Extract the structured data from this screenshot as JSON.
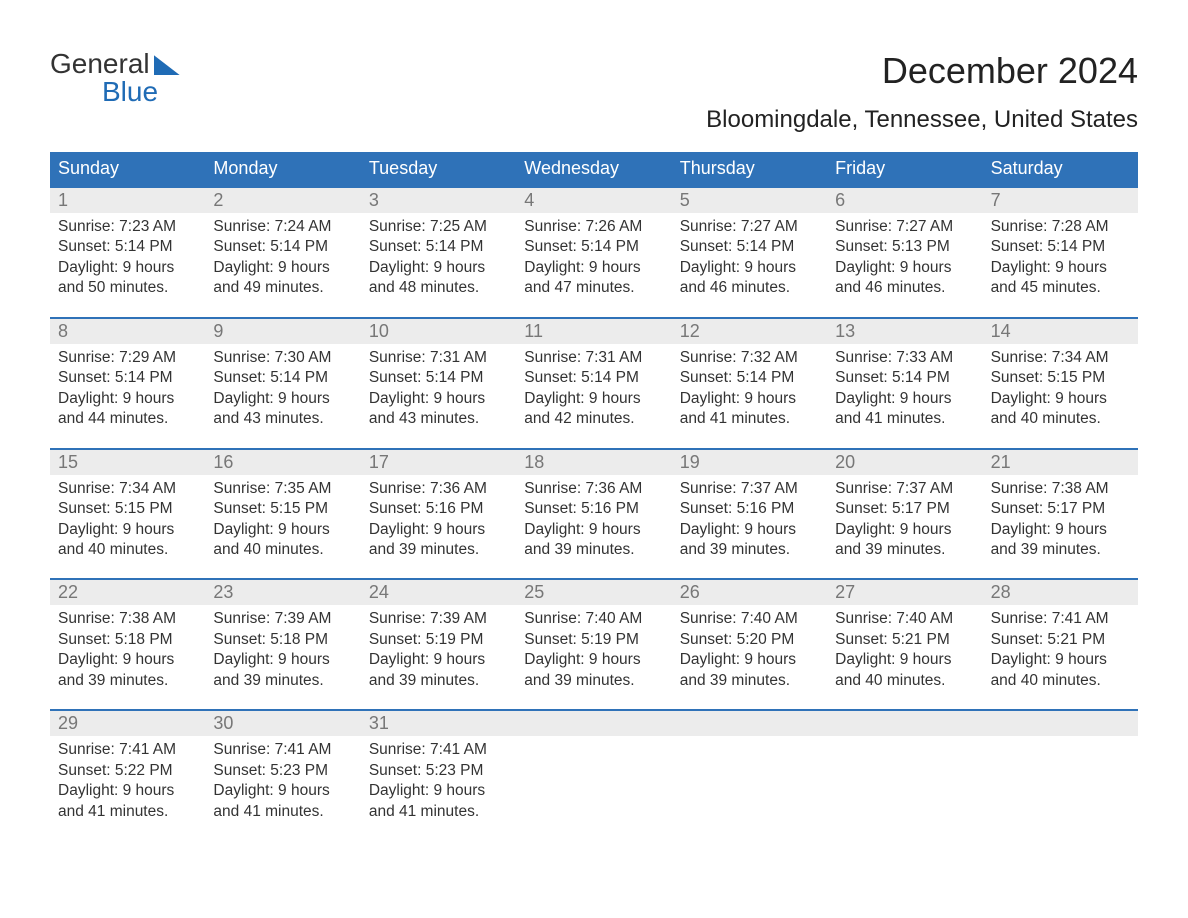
{
  "logo": {
    "line1": "General",
    "line2": "Blue"
  },
  "title": "December 2024",
  "location": "Bloomingdale, Tennessee, United States",
  "colors": {
    "header_bg": "#2f72b8",
    "header_text": "#ffffff",
    "daynum_bg": "#ececec",
    "daynum_text": "#777777",
    "body_text": "#333333",
    "week_border": "#2f72b8",
    "logo_accent": "#1f6bb5",
    "page_bg": "#ffffff"
  },
  "typography": {
    "month_title_fontsize": 36,
    "location_fontsize": 24,
    "weekday_fontsize": 18,
    "daynum_fontsize": 18,
    "body_fontsize": 15.5
  },
  "weekdays": [
    "Sunday",
    "Monday",
    "Tuesday",
    "Wednesday",
    "Thursday",
    "Friday",
    "Saturday"
  ],
  "weeks": [
    [
      {
        "day": "1",
        "sunrise": "Sunrise: 7:23 AM",
        "sunset": "Sunset: 5:14 PM",
        "dl1": "Daylight: 9 hours",
        "dl2": "and 50 minutes."
      },
      {
        "day": "2",
        "sunrise": "Sunrise: 7:24 AM",
        "sunset": "Sunset: 5:14 PM",
        "dl1": "Daylight: 9 hours",
        "dl2": "and 49 minutes."
      },
      {
        "day": "3",
        "sunrise": "Sunrise: 7:25 AM",
        "sunset": "Sunset: 5:14 PM",
        "dl1": "Daylight: 9 hours",
        "dl2": "and 48 minutes."
      },
      {
        "day": "4",
        "sunrise": "Sunrise: 7:26 AM",
        "sunset": "Sunset: 5:14 PM",
        "dl1": "Daylight: 9 hours",
        "dl2": "and 47 minutes."
      },
      {
        "day": "5",
        "sunrise": "Sunrise: 7:27 AM",
        "sunset": "Sunset: 5:14 PM",
        "dl1": "Daylight: 9 hours",
        "dl2": "and 46 minutes."
      },
      {
        "day": "6",
        "sunrise": "Sunrise: 7:27 AM",
        "sunset": "Sunset: 5:13 PM",
        "dl1": "Daylight: 9 hours",
        "dl2": "and 46 minutes."
      },
      {
        "day": "7",
        "sunrise": "Sunrise: 7:28 AM",
        "sunset": "Sunset: 5:14 PM",
        "dl1": "Daylight: 9 hours",
        "dl2": "and 45 minutes."
      }
    ],
    [
      {
        "day": "8",
        "sunrise": "Sunrise: 7:29 AM",
        "sunset": "Sunset: 5:14 PM",
        "dl1": "Daylight: 9 hours",
        "dl2": "and 44 minutes."
      },
      {
        "day": "9",
        "sunrise": "Sunrise: 7:30 AM",
        "sunset": "Sunset: 5:14 PM",
        "dl1": "Daylight: 9 hours",
        "dl2": "and 43 minutes."
      },
      {
        "day": "10",
        "sunrise": "Sunrise: 7:31 AM",
        "sunset": "Sunset: 5:14 PM",
        "dl1": "Daylight: 9 hours",
        "dl2": "and 43 minutes."
      },
      {
        "day": "11",
        "sunrise": "Sunrise: 7:31 AM",
        "sunset": "Sunset: 5:14 PM",
        "dl1": "Daylight: 9 hours",
        "dl2": "and 42 minutes."
      },
      {
        "day": "12",
        "sunrise": "Sunrise: 7:32 AM",
        "sunset": "Sunset: 5:14 PM",
        "dl1": "Daylight: 9 hours",
        "dl2": "and 41 minutes."
      },
      {
        "day": "13",
        "sunrise": "Sunrise: 7:33 AM",
        "sunset": "Sunset: 5:14 PM",
        "dl1": "Daylight: 9 hours",
        "dl2": "and 41 minutes."
      },
      {
        "day": "14",
        "sunrise": "Sunrise: 7:34 AM",
        "sunset": "Sunset: 5:15 PM",
        "dl1": "Daylight: 9 hours",
        "dl2": "and 40 minutes."
      }
    ],
    [
      {
        "day": "15",
        "sunrise": "Sunrise: 7:34 AM",
        "sunset": "Sunset: 5:15 PM",
        "dl1": "Daylight: 9 hours",
        "dl2": "and 40 minutes."
      },
      {
        "day": "16",
        "sunrise": "Sunrise: 7:35 AM",
        "sunset": "Sunset: 5:15 PM",
        "dl1": "Daylight: 9 hours",
        "dl2": "and 40 minutes."
      },
      {
        "day": "17",
        "sunrise": "Sunrise: 7:36 AM",
        "sunset": "Sunset: 5:16 PM",
        "dl1": "Daylight: 9 hours",
        "dl2": "and 39 minutes."
      },
      {
        "day": "18",
        "sunrise": "Sunrise: 7:36 AM",
        "sunset": "Sunset: 5:16 PM",
        "dl1": "Daylight: 9 hours",
        "dl2": "and 39 minutes."
      },
      {
        "day": "19",
        "sunrise": "Sunrise: 7:37 AM",
        "sunset": "Sunset: 5:16 PM",
        "dl1": "Daylight: 9 hours",
        "dl2": "and 39 minutes."
      },
      {
        "day": "20",
        "sunrise": "Sunrise: 7:37 AM",
        "sunset": "Sunset: 5:17 PM",
        "dl1": "Daylight: 9 hours",
        "dl2": "and 39 minutes."
      },
      {
        "day": "21",
        "sunrise": "Sunrise: 7:38 AM",
        "sunset": "Sunset: 5:17 PM",
        "dl1": "Daylight: 9 hours",
        "dl2": "and 39 minutes."
      }
    ],
    [
      {
        "day": "22",
        "sunrise": "Sunrise: 7:38 AM",
        "sunset": "Sunset: 5:18 PM",
        "dl1": "Daylight: 9 hours",
        "dl2": "and 39 minutes."
      },
      {
        "day": "23",
        "sunrise": "Sunrise: 7:39 AM",
        "sunset": "Sunset: 5:18 PM",
        "dl1": "Daylight: 9 hours",
        "dl2": "and 39 minutes."
      },
      {
        "day": "24",
        "sunrise": "Sunrise: 7:39 AM",
        "sunset": "Sunset: 5:19 PM",
        "dl1": "Daylight: 9 hours",
        "dl2": "and 39 minutes."
      },
      {
        "day": "25",
        "sunrise": "Sunrise: 7:40 AM",
        "sunset": "Sunset: 5:19 PM",
        "dl1": "Daylight: 9 hours",
        "dl2": "and 39 minutes."
      },
      {
        "day": "26",
        "sunrise": "Sunrise: 7:40 AM",
        "sunset": "Sunset: 5:20 PM",
        "dl1": "Daylight: 9 hours",
        "dl2": "and 39 minutes."
      },
      {
        "day": "27",
        "sunrise": "Sunrise: 7:40 AM",
        "sunset": "Sunset: 5:21 PM",
        "dl1": "Daylight: 9 hours",
        "dl2": "and 40 minutes."
      },
      {
        "day": "28",
        "sunrise": "Sunrise: 7:41 AM",
        "sunset": "Sunset: 5:21 PM",
        "dl1": "Daylight: 9 hours",
        "dl2": "and 40 minutes."
      }
    ],
    [
      {
        "day": "29",
        "sunrise": "Sunrise: 7:41 AM",
        "sunset": "Sunset: 5:22 PM",
        "dl1": "Daylight: 9 hours",
        "dl2": "and 41 minutes."
      },
      {
        "day": "30",
        "sunrise": "Sunrise: 7:41 AM",
        "sunset": "Sunset: 5:23 PM",
        "dl1": "Daylight: 9 hours",
        "dl2": "and 41 minutes."
      },
      {
        "day": "31",
        "sunrise": "Sunrise: 7:41 AM",
        "sunset": "Sunset: 5:23 PM",
        "dl1": "Daylight: 9 hours",
        "dl2": "and 41 minutes."
      },
      null,
      null,
      null,
      null
    ]
  ]
}
